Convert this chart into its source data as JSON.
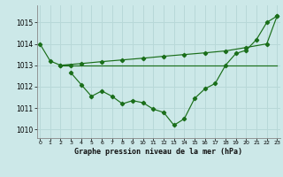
{
  "title": "Graphe pression niveau de la mer (hPa)",
  "bg_color": "#cce8e8",
  "grid_color": "#b8d8d8",
  "line_color": "#1a6e1a",
  "x_ticks": [
    0,
    1,
    2,
    3,
    4,
    5,
    6,
    7,
    8,
    9,
    10,
    11,
    12,
    13,
    14,
    15,
    16,
    17,
    18,
    19,
    20,
    21,
    22,
    23
  ],
  "y_ticks": [
    1010,
    1011,
    1012,
    1013,
    1014,
    1015
  ],
  "ylim": [
    1009.6,
    1015.8
  ],
  "xlim": [
    -0.3,
    23.3
  ],
  "curve1_x": [
    0,
    1,
    2,
    3
  ],
  "curve1_y": [
    1014.0,
    1013.2,
    1013.0,
    1013.0
  ],
  "curve2_x": [
    3,
    4,
    5,
    6,
    7,
    8,
    9,
    10,
    11,
    12,
    13,
    14,
    15,
    16,
    17,
    18,
    19,
    20,
    21,
    22,
    23
  ],
  "curve2_y": [
    1012.65,
    1012.1,
    1011.55,
    1011.8,
    1011.55,
    1011.2,
    1011.35,
    1011.25,
    1010.95,
    1010.8,
    1010.2,
    1010.5,
    1011.45,
    1011.9,
    1012.15,
    1013.0,
    1013.55,
    1013.7,
    1014.2,
    1015.0,
    1015.3
  ],
  "curve3_x": [
    2,
    23
  ],
  "curve3_y": [
    1013.0,
    1013.0
  ],
  "curve4_x": [
    2,
    4,
    6,
    8,
    10,
    12,
    14,
    16,
    18,
    20,
    22,
    23
  ],
  "curve4_y": [
    1013.0,
    1013.08,
    1013.17,
    1013.25,
    1013.33,
    1013.42,
    1013.5,
    1013.58,
    1013.67,
    1013.83,
    1014.0,
    1015.3
  ]
}
